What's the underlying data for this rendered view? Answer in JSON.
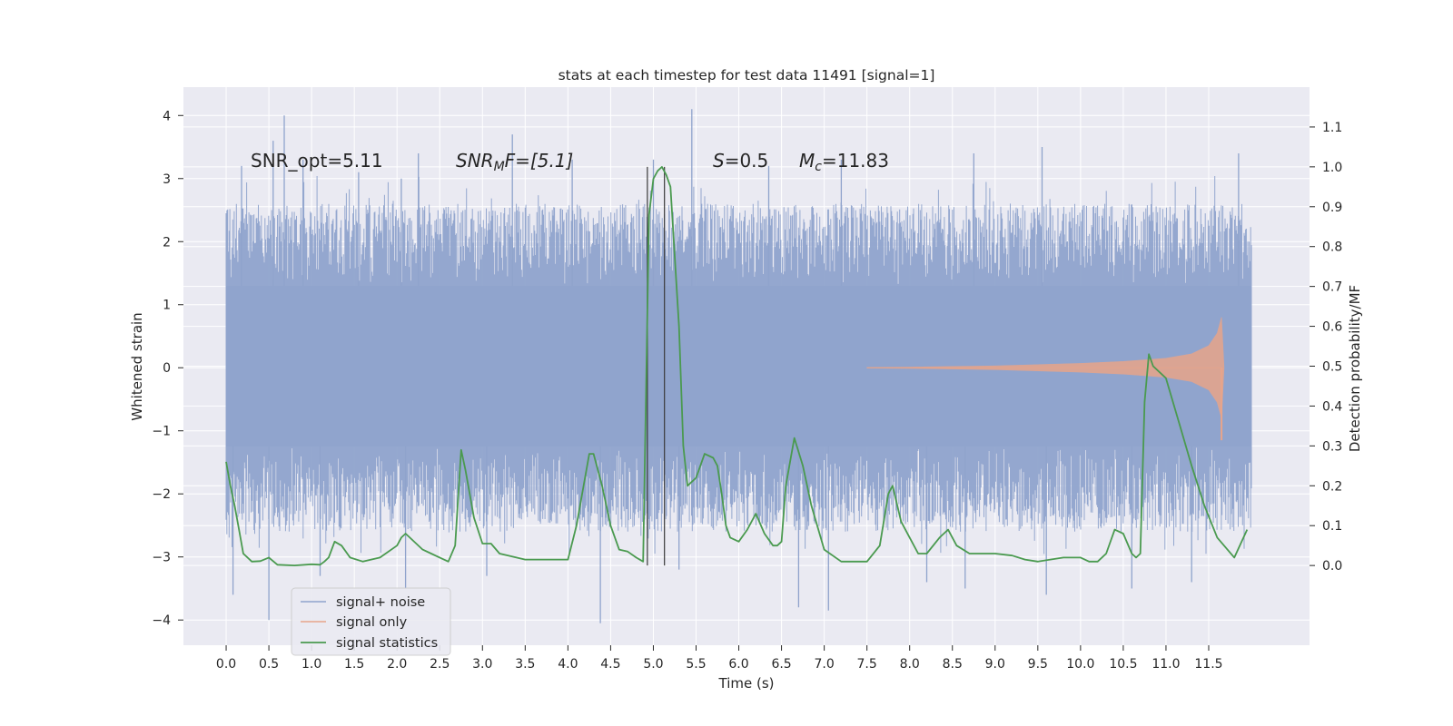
{
  "chart_data": {
    "type": "line",
    "title": "stats at each timestep for test data 11491 [signal=1]",
    "xlabel": "Time (s)",
    "ylabel_left": "Whitened strain",
    "ylabel_right": "Detection probability/MF",
    "xlim": [
      -0.5,
      12.68
    ],
    "ylim_left": [
      -4.4,
      4.45
    ],
    "ylim_right": [
      -0.2,
      1.2
    ],
    "x_ticks": [
      "0.0",
      "0.5",
      "1.0",
      "1.5",
      "2.0",
      "2.5",
      "3.0",
      "3.5",
      "4.0",
      "4.5",
      "5.0",
      "5.5",
      "6.0",
      "6.5",
      "7.0",
      "7.5",
      "8.0",
      "8.5",
      "9.0",
      "9.5",
      "10.0",
      "10.5",
      "11.0",
      "11.5"
    ],
    "y_ticks_left": [
      "4",
      "3",
      "2",
      "1",
      "0",
      "−1",
      "−2",
      "−3",
      "−4"
    ],
    "y_ticks_right": [
      "1.1",
      "1.0",
      "0.9",
      "0.8",
      "0.7",
      "0.6",
      "0.5",
      "0.4",
      "0.3",
      "0.2",
      "0.1",
      "0.0"
    ],
    "grid": true,
    "legend_position": "lower-left",
    "annotations": {
      "snr_opt": "SNR_opt=5.11",
      "snr_mf_main": "SNR",
      "snr_mf_sub": "M",
      "snr_mf_rest": "F=[5.1]",
      "s_main": "S",
      "s_rest": "=0.5",
      "mc_main": "M",
      "mc_sub": "c",
      "mc_rest": "=11.83"
    },
    "vertical_lines_x": [
      4.93,
      5.13
    ],
    "series": [
      {
        "name": "signal+ noise",
        "color": "#8fa3cc",
        "axis": "left",
        "x_range": [
          0.0,
          12.0
        ],
        "band_core": [
          -1.25,
          1.3
        ],
        "typical_extent": [
          -2.6,
          2.6
        ],
        "extreme_extent": [
          -4.0,
          4.1
        ],
        "upper_peaks": [
          {
            "x": 0.18,
            "y": 3.2
          },
          {
            "x": 0.55,
            "y": 3.6
          },
          {
            "x": 0.68,
            "y": 4.0
          },
          {
            "x": 0.9,
            "y": 3.3
          },
          {
            "x": 1.55,
            "y": 3.1
          },
          {
            "x": 2.05,
            "y": 3.0
          },
          {
            "x": 2.25,
            "y": 3.4
          },
          {
            "x": 3.35,
            "y": 3.7
          },
          {
            "x": 4.05,
            "y": 3.3
          },
          {
            "x": 5.0,
            "y": 3.3
          },
          {
            "x": 5.45,
            "y": 4.1
          },
          {
            "x": 6.35,
            "y": 3.2
          },
          {
            "x": 7.2,
            "y": 3.3
          },
          {
            "x": 8.75,
            "y": 3.4
          },
          {
            "x": 9.55,
            "y": 3.5
          },
          {
            "x": 11.85,
            "y": 3.4
          }
        ],
        "lower_peaks": [
          {
            "x": 0.08,
            "y": -3.6
          },
          {
            "x": 0.5,
            "y": -4.0
          },
          {
            "x": 1.1,
            "y": -3.3
          },
          {
            "x": 2.1,
            "y": -3.5
          },
          {
            "x": 3.05,
            "y": -3.3
          },
          {
            "x": 4.38,
            "y": -4.05
          },
          {
            "x": 5.3,
            "y": -3.2
          },
          {
            "x": 6.7,
            "y": -3.8
          },
          {
            "x": 7.05,
            "y": -3.85
          },
          {
            "x": 8.2,
            "y": -3.4
          },
          {
            "x": 8.65,
            "y": -3.5
          },
          {
            "x": 9.6,
            "y": -3.6
          },
          {
            "x": 10.6,
            "y": -3.5
          },
          {
            "x": 11.3,
            "y": -3.4
          }
        ]
      },
      {
        "name": "signal only",
        "color": "#e8a48a",
        "axis": "left",
        "x": [
          7.5,
          8.0,
          9.0,
          10.0,
          10.5,
          11.0,
          11.3,
          11.5,
          11.6,
          11.65,
          11.68
        ],
        "amplitude": [
          0.005,
          0.01,
          0.03,
          0.07,
          0.1,
          0.15,
          0.22,
          0.35,
          0.55,
          0.8,
          0.0
        ],
        "min_tail": -1.15
      },
      {
        "name": "signal statistics",
        "color": "#4a9a4f",
        "axis": "right",
        "x": [
          0.0,
          0.05,
          0.1,
          0.15,
          0.2,
          0.3,
          0.4,
          0.5,
          0.6,
          0.8,
          1.0,
          1.1,
          1.15,
          1.2,
          1.27,
          1.35,
          1.45,
          1.6,
          1.8,
          2.0,
          2.05,
          2.1,
          2.15,
          2.3,
          2.4,
          2.5,
          2.6,
          2.68,
          2.75,
          2.8,
          2.9,
          3.0,
          3.1,
          3.2,
          3.5,
          4.0,
          4.1,
          4.2,
          4.25,
          4.3,
          4.4,
          4.5,
          4.6,
          4.7,
          4.8,
          4.88,
          4.95,
          5.0,
          5.05,
          5.1,
          5.15,
          5.2,
          5.3,
          5.35,
          5.4,
          5.5,
          5.6,
          5.7,
          5.75,
          5.8,
          5.85,
          5.9,
          6.0,
          6.1,
          6.2,
          6.3,
          6.4,
          6.45,
          6.5,
          6.55,
          6.65,
          6.75,
          6.85,
          7.0,
          7.2,
          7.5,
          7.65,
          7.75,
          7.8,
          7.9,
          8.0,
          8.1,
          8.2,
          8.35,
          8.45,
          8.55,
          8.7,
          8.8,
          9.0,
          9.2,
          9.35,
          9.5,
          9.8,
          10.0,
          10.1,
          10.2,
          10.3,
          10.4,
          10.5,
          10.6,
          10.65,
          10.7,
          10.75,
          10.8,
          10.85,
          11.0,
          11.15,
          11.3,
          11.45,
          11.6,
          11.8,
          11.95
        ],
        "y": [
          0.26,
          0.2,
          0.15,
          0.09,
          0.03,
          0.01,
          0.011,
          0.02,
          0.002,
          0.0,
          0.003,
          0.002,
          0.01,
          0.02,
          0.06,
          0.05,
          0.02,
          0.01,
          0.02,
          0.05,
          0.07,
          0.08,
          0.07,
          0.04,
          0.03,
          0.02,
          0.01,
          0.05,
          0.29,
          0.24,
          0.12,
          0.055,
          0.055,
          0.03,
          0.015,
          0.015,
          0.1,
          0.22,
          0.28,
          0.28,
          0.2,
          0.1,
          0.04,
          0.035,
          0.02,
          0.01,
          0.88,
          0.97,
          0.99,
          1.0,
          0.98,
          0.95,
          0.6,
          0.3,
          0.2,
          0.22,
          0.28,
          0.27,
          0.25,
          0.18,
          0.1,
          0.07,
          0.06,
          0.09,
          0.13,
          0.08,
          0.05,
          0.05,
          0.06,
          0.2,
          0.32,
          0.25,
          0.15,
          0.04,
          0.01,
          0.01,
          0.05,
          0.18,
          0.2,
          0.11,
          0.07,
          0.03,
          0.03,
          0.07,
          0.09,
          0.05,
          0.03,
          0.03,
          0.03,
          0.025,
          0.015,
          0.01,
          0.02,
          0.02,
          0.01,
          0.01,
          0.03,
          0.09,
          0.08,
          0.03,
          0.02,
          0.03,
          0.41,
          0.53,
          0.5,
          0.47,
          0.36,
          0.25,
          0.15,
          0.07,
          0.02,
          0.09
        ]
      }
    ]
  }
}
